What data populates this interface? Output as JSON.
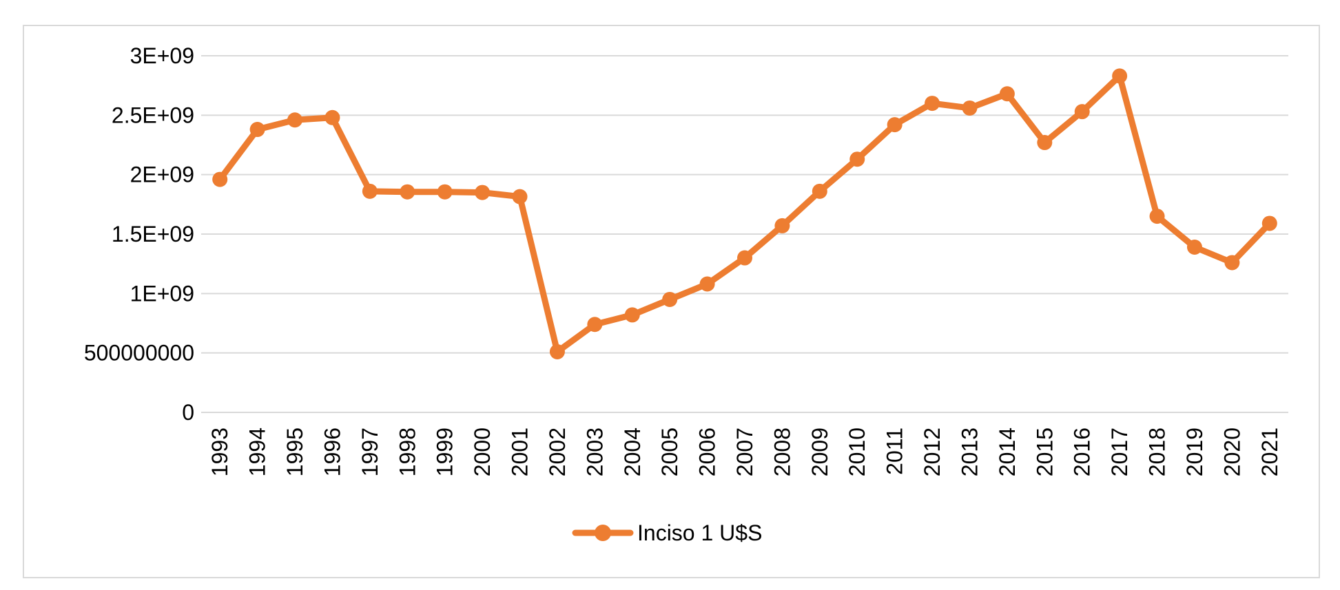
{
  "chart_data": {
    "type": "line",
    "title": "",
    "xlabel": "",
    "ylabel": "",
    "x": [
      "1993",
      "1994",
      "1995",
      "1996",
      "1997",
      "1998",
      "1999",
      "2000",
      "2001",
      "2002",
      "2003",
      "2004",
      "2005",
      "2006",
      "2007",
      "2008",
      "2009",
      "2010",
      "2011",
      "2012",
      "2013",
      "2014",
      "2015",
      "2016",
      "2017",
      "2018",
      "2019",
      "2020",
      "2021"
    ],
    "series": [
      {
        "name": "Inciso 1 U$S",
        "color": "#ed7d31",
        "values": [
          1960000000,
          2380000000,
          2460000000,
          2480000000,
          1860000000,
          1855000000,
          1855000000,
          1850000000,
          1815000000,
          510000000,
          740000000,
          820000000,
          950000000,
          1080000000,
          1300000000,
          1570000000,
          1860000000,
          2130000000,
          2420000000,
          2600000000,
          2560000000,
          2680000000,
          2270000000,
          2530000000,
          2830000000,
          1650000000,
          1390000000,
          1260000000,
          1590000000
        ]
      }
    ],
    "ylim": [
      0,
      3000000000
    ],
    "yticks": [
      0,
      500000000,
      1000000000,
      1500000000,
      2000000000,
      2500000000,
      3000000000
    ],
    "ytick_labels": [
      "0",
      "500000000",
      "1E+09",
      "1.5E+09",
      "2E+09",
      "2.5E+09",
      "3E+09"
    ],
    "grid": true,
    "legend_position": "bottom",
    "legend_marker": "circle-line"
  }
}
